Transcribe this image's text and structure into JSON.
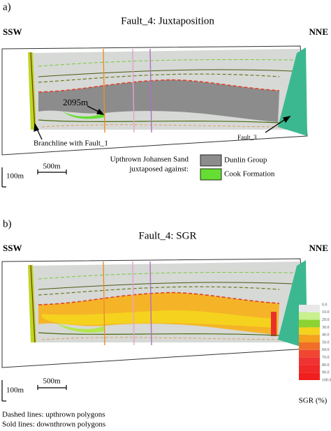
{
  "panels": [
    {
      "label": "a)",
      "title": "Fault_4: Juxtaposition",
      "left": "SSW",
      "right": "NNE",
      "scale_v": "100m",
      "scale_h": "500m",
      "annotations": [
        "2095m",
        "Branchline with Fault_1",
        "Fault_3"
      ]
    },
    {
      "label": "b)",
      "title": "Fault_4: SGR",
      "left": "SSW",
      "right": "NNE",
      "scale_v": "100m",
      "scale_h": "500m"
    }
  ],
  "legend": {
    "title": [
      "Upthrown Johansen Sand",
      "juxtaposed against:"
    ],
    "items": [
      {
        "label": "Dunlin Group",
        "color": "#8c8c8c"
      },
      {
        "label": "Cook Formation",
        "color": "#66dd33"
      }
    ]
  },
  "colorbar": {
    "ticks": [
      "0.0",
      "10.0",
      "20.0",
      "30.0",
      "40.0",
      "50.0",
      "60.0",
      "70.0",
      "80.0",
      "90.0",
      "100.0"
    ],
    "colors": [
      "#e8e8e8",
      "#c8f08c",
      "#8cd232",
      "#f5d21e",
      "#f5a01e",
      "#f06e28",
      "#f04632",
      "#f03232",
      "#f02828",
      "#f01e1e"
    ],
    "label": "SGR (%)"
  },
  "notes": [
    "Dashed lines: upthrown polygons",
    "Sold lines: downthrown polygons"
  ]
}
